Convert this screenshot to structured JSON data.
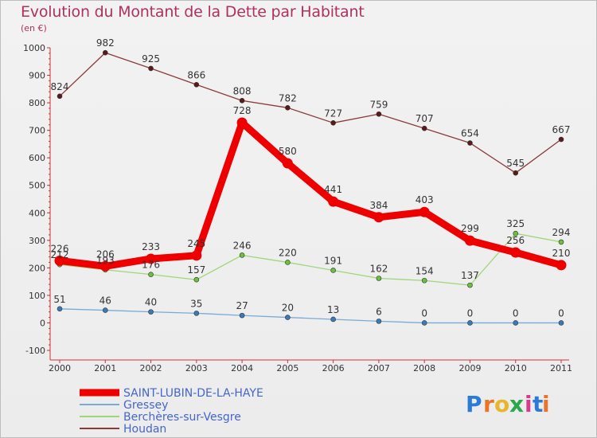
{
  "header": {
    "title": "Evolution du Montant de la Dette par Habitant",
    "subtitle": "(en €)"
  },
  "brand": {
    "letters": [
      "P",
      "r",
      "o",
      "x",
      "i",
      "t",
      "i"
    ],
    "colors": [
      "#2b7bd6",
      "#e8742a",
      "#e8b62a",
      "#2aa84a",
      "#d63b8f",
      "#2b7bd6",
      "#e8742a"
    ]
  },
  "chart_data": {
    "type": "line",
    "title": "Evolution du Montant de la Dette par Habitant",
    "subtitle": "(en €)",
    "categories": [
      "2000",
      "2001",
      "2002",
      "2003",
      "2004",
      "2005",
      "2006",
      "2007",
      "2008",
      "2009",
      "2010",
      "2011"
    ],
    "ylim": [
      -100,
      1000
    ],
    "yticks": [
      -100,
      0,
      100,
      200,
      300,
      400,
      500,
      600,
      700,
      800,
      900,
      1000
    ],
    "grid": false,
    "legend_position": "bottom-left",
    "series": [
      {
        "name": "Houdan",
        "color": "#8b3a3a",
        "point_color": "#5a1a1a",
        "width": "thin",
        "values": [
          824,
          982,
          925,
          866,
          808,
          782,
          727,
          759,
          707,
          654,
          545,
          667
        ]
      },
      {
        "name": "Berchères-sur-Vesgre",
        "color": "#9ed67a",
        "point_color": "#6cc03c",
        "width": "thin",
        "values": [
          212,
          193,
          176,
          157,
          246,
          220,
          191,
          162,
          154,
          137,
          325,
          294
        ]
      },
      {
        "name": "Gressey",
        "color": "#7aaad6",
        "point_color": "#3a7ab6",
        "width": "thin",
        "values": [
          51,
          46,
          40,
          35,
          27,
          20,
          13,
          6,
          0,
          0,
          0,
          0
        ]
      },
      {
        "name": "SAINT-LUBIN-DE-LA-HAYE",
        "color": "#ee0000",
        "point_color": "#ee0000",
        "width": "thick",
        "values": [
          226,
          206,
          233,
          245,
          728,
          580,
          441,
          384,
          403,
          299,
          256,
          210
        ]
      }
    ],
    "legend_order": [
      "SAINT-LUBIN-DE-LA-HAYE",
      "Gressey",
      "Berchères-sur-Vesgre",
      "Houdan"
    ]
  }
}
